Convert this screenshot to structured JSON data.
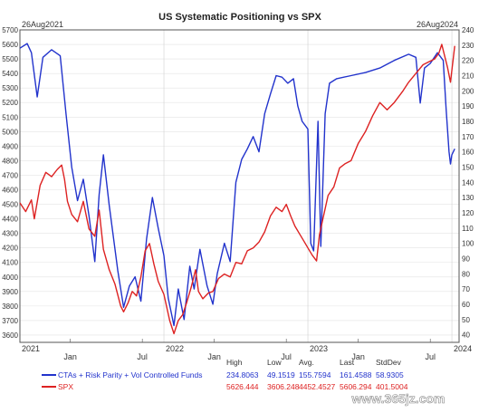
{
  "chart_data": {
    "type": "line",
    "title": "US Systematic Positioning vs SPX",
    "date_left": "26Aug2021",
    "date_right": "26Aug2024",
    "x_year_labels": [
      "2021",
      "2022",
      "2023",
      "2024"
    ],
    "x_month_labels": [
      {
        "t": 0.35,
        "label": "Jan"
      },
      {
        "t": 0.85,
        "label": "Jul"
      },
      {
        "t": 1.35,
        "label": "Jan"
      },
      {
        "t": 1.85,
        "label": "Jul"
      },
      {
        "t": 2.35,
        "label": "Jan"
      },
      {
        "t": 2.85,
        "label": "Jul"
      }
    ],
    "left_axis": {
      "ticks": [
        "5700",
        "5600",
        "5500",
        "5400",
        "5300",
        "5200",
        "5100",
        "5000",
        "4900",
        "4800",
        "4700",
        "4600",
        "4500",
        "4400",
        "4300",
        "4200",
        "4100",
        "4000",
        "3900",
        "3800",
        "3700",
        "3600"
      ],
      "min": 3550,
      "max": 5700
    },
    "right_axis": {
      "ticks": [
        "240",
        "230",
        "220",
        "210",
        "200",
        "190",
        "180",
        "170",
        "160",
        "150",
        "140",
        "130",
        "120",
        "110",
        "100",
        "90",
        "80",
        "70",
        "60",
        "50",
        "40"
      ],
      "min": 35,
      "max": 240
    },
    "series": [
      {
        "name": "CTAs + Risk Parity + Vol Controlled Funds",
        "axis": "right",
        "color": "#2233cc",
        "points": [
          [
            0.0,
            228
          ],
          [
            0.05,
            231
          ],
          [
            0.08,
            225
          ],
          [
            0.12,
            196
          ],
          [
            0.16,
            222
          ],
          [
            0.22,
            227
          ],
          [
            0.28,
            223
          ],
          [
            0.32,
            185
          ],
          [
            0.36,
            150
          ],
          [
            0.4,
            128
          ],
          [
            0.44,
            142
          ],
          [
            0.48,
            118
          ],
          [
            0.52,
            88
          ],
          [
            0.55,
            132
          ],
          [
            0.58,
            158
          ],
          [
            0.62,
            125
          ],
          [
            0.68,
            82
          ],
          [
            0.72,
            58
          ],
          [
            0.76,
            72
          ],
          [
            0.8,
            78
          ],
          [
            0.84,
            62
          ],
          [
            0.88,
            103
          ],
          [
            0.92,
            130
          ],
          [
            0.96,
            110
          ],
          [
            1.0,
            92
          ],
          [
            1.03,
            64
          ],
          [
            1.07,
            46
          ],
          [
            1.1,
            70
          ],
          [
            1.14,
            50
          ],
          [
            1.18,
            85
          ],
          [
            1.21,
            70
          ],
          [
            1.25,
            96
          ],
          [
            1.3,
            72
          ],
          [
            1.34,
            60
          ],
          [
            1.37,
            80
          ],
          [
            1.42,
            100
          ],
          [
            1.46,
            88
          ],
          [
            1.5,
            140
          ],
          [
            1.54,
            155
          ],
          [
            1.58,
            162
          ],
          [
            1.62,
            170
          ],
          [
            1.66,
            160
          ],
          [
            1.7,
            185
          ],
          [
            1.74,
            198
          ],
          [
            1.78,
            210
          ],
          [
            1.82,
            209
          ],
          [
            1.86,
            205
          ],
          [
            1.9,
            208
          ],
          [
            1.93,
            190
          ],
          [
            1.96,
            180
          ],
          [
            2.0,
            175
          ],
          [
            2.02,
            100
          ],
          [
            2.04,
            95
          ],
          [
            2.07,
            180
          ],
          [
            2.09,
            98
          ],
          [
            2.12,
            185
          ],
          [
            2.15,
            205
          ],
          [
            2.2,
            208
          ],
          [
            2.3,
            210
          ],
          [
            2.4,
            212
          ],
          [
            2.5,
            215
          ],
          [
            2.6,
            220
          ],
          [
            2.7,
            224
          ],
          [
            2.75,
            222
          ],
          [
            2.78,
            192
          ],
          [
            2.81,
            215
          ],
          [
            2.85,
            218
          ],
          [
            2.9,
            225
          ],
          [
            2.94,
            220
          ],
          [
            2.96,
            188
          ],
          [
            2.98,
            160
          ],
          [
            2.99,
            152
          ],
          [
            3.0,
            158
          ],
          [
            3.02,
            162
          ]
        ]
      },
      {
        "name": "SPX",
        "axis": "left",
        "color": "#dd2222",
        "points": [
          [
            0.0,
            4510
          ],
          [
            0.04,
            4450
          ],
          [
            0.08,
            4530
          ],
          [
            0.1,
            4400
          ],
          [
            0.14,
            4630
          ],
          [
            0.18,
            4720
          ],
          [
            0.22,
            4690
          ],
          [
            0.26,
            4740
          ],
          [
            0.29,
            4770
          ],
          [
            0.31,
            4670
          ],
          [
            0.33,
            4520
          ],
          [
            0.36,
            4430
          ],
          [
            0.4,
            4380
          ],
          [
            0.44,
            4520
          ],
          [
            0.48,
            4330
          ],
          [
            0.52,
            4280
          ],
          [
            0.55,
            4460
          ],
          [
            0.58,
            4190
          ],
          [
            0.62,
            4050
          ],
          [
            0.66,
            3950
          ],
          [
            0.7,
            3800
          ],
          [
            0.72,
            3760
          ],
          [
            0.75,
            3820
          ],
          [
            0.78,
            3900
          ],
          [
            0.81,
            3870
          ],
          [
            0.84,
            4000
          ],
          [
            0.87,
            4180
          ],
          [
            0.9,
            4230
          ],
          [
            0.93,
            4090
          ],
          [
            0.96,
            3970
          ],
          [
            1.0,
            3880
          ],
          [
            1.04,
            3700
          ],
          [
            1.07,
            3610
          ],
          [
            1.1,
            3700
          ],
          [
            1.13,
            3740
          ],
          [
            1.16,
            3830
          ],
          [
            1.19,
            3930
          ],
          [
            1.22,
            4050
          ],
          [
            1.24,
            3900
          ],
          [
            1.27,
            3850
          ],
          [
            1.31,
            3890
          ],
          [
            1.34,
            3900
          ],
          [
            1.38,
            3990
          ],
          [
            1.42,
            4020
          ],
          [
            1.46,
            4000
          ],
          [
            1.5,
            4100
          ],
          [
            1.54,
            4090
          ],
          [
            1.58,
            4180
          ],
          [
            1.62,
            4200
          ],
          [
            1.66,
            4240
          ],
          [
            1.7,
            4310
          ],
          [
            1.74,
            4420
          ],
          [
            1.78,
            4480
          ],
          [
            1.82,
            4450
          ],
          [
            1.85,
            4500
          ],
          [
            1.88,
            4420
          ],
          [
            1.91,
            4350
          ],
          [
            1.94,
            4300
          ],
          [
            1.97,
            4250
          ],
          [
            2.0,
            4200
          ],
          [
            2.03,
            4150
          ],
          [
            2.06,
            4110
          ],
          [
            2.08,
            4290
          ],
          [
            2.1,
            4380
          ],
          [
            2.14,
            4560
          ],
          [
            2.18,
            4620
          ],
          [
            2.22,
            4750
          ],
          [
            2.26,
            4780
          ],
          [
            2.3,
            4800
          ],
          [
            2.35,
            4920
          ],
          [
            2.4,
            5000
          ],
          [
            2.45,
            5110
          ],
          [
            2.5,
            5200
          ],
          [
            2.55,
            5150
          ],
          [
            2.6,
            5200
          ],
          [
            2.66,
            5280
          ],
          [
            2.7,
            5340
          ],
          [
            2.75,
            5400
          ],
          [
            2.8,
            5460
          ],
          [
            2.84,
            5480
          ],
          [
            2.88,
            5500
          ],
          [
            2.91,
            5540
          ],
          [
            2.93,
            5600
          ],
          [
            2.95,
            5520
          ],
          [
            2.97,
            5440
          ],
          [
            2.99,
            5340
          ],
          [
            3.0,
            5420
          ],
          [
            3.02,
            5590
          ]
        ]
      }
    ],
    "legend": {
      "headers": [
        "High",
        "Low",
        "Avg.",
        "Last",
        "StdDev"
      ],
      "rows": [
        {
          "label": "CTAs + Risk Parity + Vol Controlled Funds",
          "color": "#2233cc",
          "values": [
            "234.8063",
            "49.1519",
            "155.7594",
            "161.4588",
            "58.9305"
          ]
        },
        {
          "label": "SPX",
          "color": "#dd2222",
          "values": [
            "5626.444",
            "3606.248",
            "4452.4527",
            "5606.294",
            "401.5004"
          ]
        }
      ]
    },
    "watermark": "www.365jz.com",
    "grid": true
  }
}
